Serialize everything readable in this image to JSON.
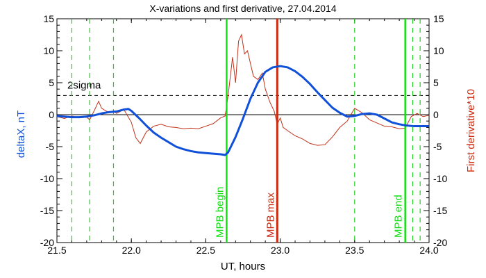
{
  "chart_data": {
    "type": "line",
    "title": "X-variations and first derivative, 27.04.2014",
    "xlabel": "UT, hours",
    "ylabel_left": "deltaX, nT",
    "ylabel_right": "First derivative*10",
    "xlim": [
      21.5,
      24.0
    ],
    "ylim": [
      -20,
      15
    ],
    "xticks": [
      21.5,
      22.0,
      22.5,
      23.0,
      23.5,
      24.0
    ],
    "xtick_labels": [
      "21.5",
      "22.0",
      "22.5",
      "23.0",
      "23.5",
      "24.0"
    ],
    "yticks": [
      -20,
      -15,
      -10,
      -5,
      0,
      5,
      10,
      15
    ],
    "ytick_labels": [
      "-20",
      "-15",
      "-10",
      "-5",
      "0",
      "5",
      "10",
      "15"
    ],
    "sigma_level": 3.0,
    "sigma_label": "2sigma",
    "zero_line": 0,
    "colors": {
      "deltaX": "#1050d8",
      "derivative": "#c03018",
      "mpb_begin_end": "#10e010",
      "mpb_max": "#cc2a10",
      "dashed_green": "#20d020",
      "axes": "#000000"
    },
    "vertical_markers": [
      {
        "x": 22.64,
        "label": "MPB begin",
        "style": "solid",
        "color": "#10e010"
      },
      {
        "x": 22.98,
        "label": "MPB max",
        "style": "solid",
        "color": "#cc2a10"
      },
      {
        "x": 23.84,
        "label": "MPB end",
        "style": "solid",
        "color": "#10e010"
      }
    ],
    "dashed_markers": [
      21.6,
      21.72,
      21.88,
      23.5,
      23.89,
      23.94
    ],
    "series": [
      {
        "name": "deltaX, nT",
        "color": "#1050d8",
        "x": [
          21.5,
          21.55,
          21.6,
          21.65,
          21.7,
          21.75,
          21.8,
          21.85,
          21.9,
          21.95,
          21.98,
          22.0,
          22.05,
          22.1,
          22.15,
          22.2,
          22.25,
          22.3,
          22.35,
          22.4,
          22.45,
          22.5,
          22.55,
          22.6,
          22.63,
          22.65,
          22.7,
          22.75,
          22.8,
          22.85,
          22.9,
          22.95,
          23.0,
          23.05,
          23.1,
          23.15,
          23.2,
          23.25,
          23.3,
          23.35,
          23.4,
          23.45,
          23.5,
          23.55,
          23.6,
          23.65,
          23.7,
          23.75,
          23.8,
          23.85,
          23.9,
          23.95,
          24.0
        ],
        "values": [
          -0.2,
          -0.3,
          -0.4,
          -0.4,
          -0.3,
          -0.1,
          0.2,
          0.4,
          0.5,
          0.8,
          0.9,
          0.6,
          -0.5,
          -1.7,
          -2.8,
          -3.6,
          -4.3,
          -5.0,
          -5.4,
          -5.7,
          -5.9,
          -6.0,
          -6.1,
          -6.2,
          -6.3,
          -5.9,
          -3.5,
          -0.6,
          2.5,
          5.0,
          6.7,
          7.4,
          7.6,
          7.4,
          6.8,
          5.9,
          4.8,
          3.5,
          2.3,
          1.1,
          0.3,
          -0.3,
          -0.2,
          0.1,
          0.2,
          0.0,
          -0.6,
          -1.2,
          -1.5,
          -1.7,
          -1.8,
          -1.8,
          -1.8
        ]
      },
      {
        "name": "First derivative*10",
        "color": "#c03018",
        "x": [
          21.5,
          21.55,
          21.6,
          21.65,
          21.7,
          21.72,
          21.75,
          21.78,
          21.8,
          21.85,
          21.88,
          21.9,
          21.95,
          22.0,
          22.03,
          22.06,
          22.1,
          22.15,
          22.2,
          22.25,
          22.3,
          22.35,
          22.4,
          22.45,
          22.5,
          22.55,
          22.6,
          22.63,
          22.65,
          22.68,
          22.7,
          22.72,
          22.74,
          22.76,
          22.78,
          22.8,
          22.82,
          22.85,
          22.88,
          22.9,
          22.93,
          22.96,
          22.98,
          23.0,
          23.02,
          23.05,
          23.1,
          23.15,
          23.2,
          23.25,
          23.3,
          23.35,
          23.4,
          23.45,
          23.5,
          23.55,
          23.6,
          23.65,
          23.7,
          23.75,
          23.8,
          23.84,
          23.88,
          23.92,
          23.96,
          24.0
        ],
        "values": [
          -0.3,
          -0.6,
          -0.2,
          -0.5,
          -0.4,
          -0.8,
          0.6,
          2.1,
          1.0,
          0.3,
          0.6,
          0.2,
          0.8,
          -1.2,
          -3.6,
          -4.5,
          -2.7,
          -1.8,
          -1.5,
          -1.9,
          -2.0,
          -2.2,
          -2.1,
          -2.2,
          -1.8,
          -1.4,
          -0.5,
          -0.2,
          3.0,
          9.0,
          5.0,
          11.5,
          12.5,
          9.5,
          10.0,
          8.0,
          6.0,
          5.5,
          6.5,
          4.0,
          2.0,
          0.5,
          -1.5,
          -0.5,
          -2.0,
          -2.5,
          -3.3,
          -3.8,
          -4.5,
          -4.8,
          -4.7,
          -3.5,
          -2.0,
          -1.0,
          1.0,
          0.3,
          -0.8,
          -1.3,
          -1.8,
          -1.9,
          -2.2,
          -2.1,
          -0.3,
          0.2,
          -0.3,
          -0.1
        ]
      }
    ]
  }
}
